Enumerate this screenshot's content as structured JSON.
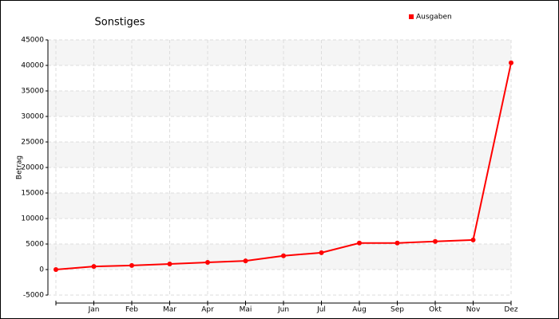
{
  "chart_data": {
    "type": "line",
    "title": "Sonstiges",
    "y_label": "Betrag",
    "categories": [
      null,
      "Jan",
      "Feb",
      "Mar",
      "Apr",
      "Mai",
      "Jun",
      "Jul",
      "Aug",
      "Sep",
      "Okt",
      "Nov",
      "Dez"
    ],
    "series": [
      {
        "name": "Ausgaben",
        "color": "#ff0000",
        "values": [
          0,
          600,
          800,
          1100,
          1400,
          1700,
          2700,
          3300,
          5200,
          5200,
          5500,
          5800,
          40500
        ]
      }
    ],
    "ylim": [
      -5000,
      45000
    ],
    "yticks": [
      -5000,
      0,
      5000,
      10000,
      15000,
      20000,
      25000,
      30000,
      35000,
      40000,
      45000
    ],
    "grid": true,
    "legend": "top-right"
  }
}
